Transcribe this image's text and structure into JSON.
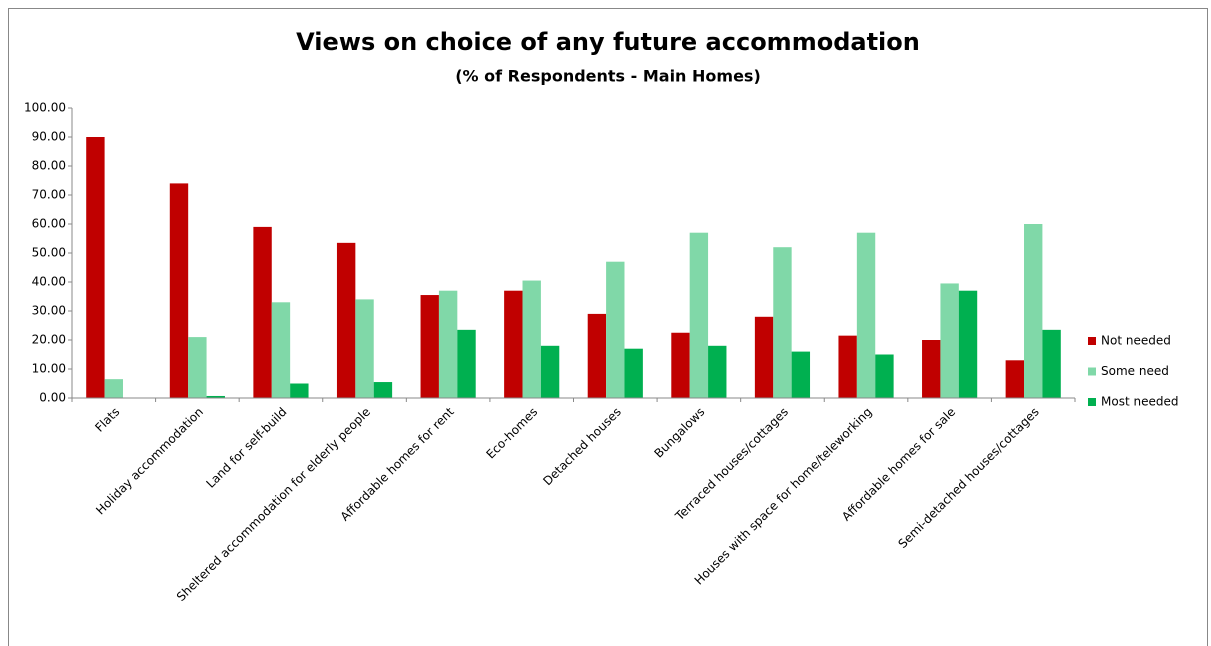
{
  "chart_data": {
    "type": "bar",
    "title": "Views on choice of any future accommodation",
    "subtitle": "(%  of Respondents - Main Homes)",
    "categories": [
      "Flats",
      "Holiday accommodation",
      "Land for self-build",
      "Sheltered accommodation for elderly people",
      "Affordable homes for rent",
      "Eco-homes",
      "Detached houses",
      "Bungalows",
      "Terraced houses/cottages",
      "Houses with space for home/teleworking",
      "Affordable homes for sale",
      "Semi-detached houses/cottages"
    ],
    "series": [
      {
        "name": "Not needed",
        "color": "#c00000",
        "values": [
          90,
          74,
          59,
          53.5,
          35.5,
          37,
          29,
          22.5,
          28,
          21.5,
          20,
          13
        ]
      },
      {
        "name": "Some need",
        "color": "#80d8a8",
        "values": [
          6.5,
          21,
          33,
          34,
          37,
          40.5,
          47,
          57,
          52,
          57,
          39.5,
          60
        ]
      },
      {
        "name": "Most needed",
        "color": "#00b050",
        "values": [
          0,
          0.7,
          5,
          5.5,
          23.5,
          18,
          17,
          18,
          16,
          15,
          37,
          23.5
        ]
      }
    ],
    "ylim": [
      0,
      100
    ],
    "yticks": [
      {
        "value": 0,
        "label": "0.00"
      },
      {
        "value": 10,
        "label": "10.00"
      },
      {
        "value": 20,
        "label": "20.00"
      },
      {
        "value": 30,
        "label": "30.00"
      },
      {
        "value": 40,
        "label": "40.00"
      },
      {
        "value": 50,
        "label": "50.00"
      },
      {
        "value": 60,
        "label": "60.00"
      },
      {
        "value": 70,
        "label": "70.00"
      },
      {
        "value": 80,
        "label": "80.00"
      },
      {
        "value": 90,
        "label": "90.00"
      },
      {
        "value": 100,
        "label": "100.00"
      }
    ],
    "grid": false,
    "legend": "right"
  }
}
